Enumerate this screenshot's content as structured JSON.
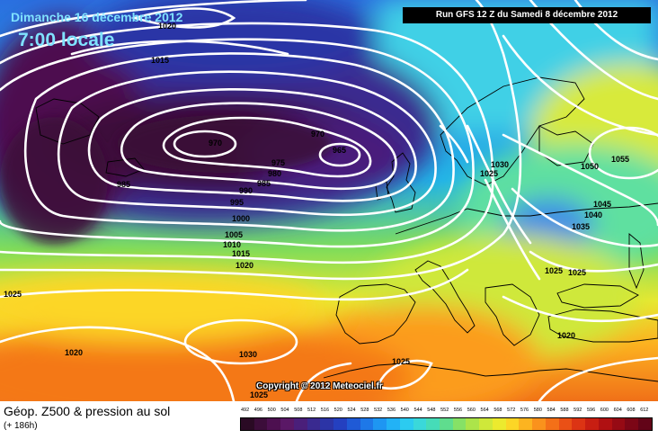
{
  "header": {
    "date": "Dimanche 16 décembre 2012",
    "time": "7:00 locale",
    "run": "Run GFS 12 Z du Samedi 8 décembre 2012"
  },
  "copyright": "Copyright © 2012 Meteociel.fr",
  "footer": {
    "title": "Géop. Z500 & pression au sol",
    "lead": "(+ 186h)"
  },
  "map": {
    "isobar_color": "#ffffff",
    "coast_color": "#000000",
    "pressure_labels": [
      {
        "text": "1020"
      },
      {
        "text": "1015"
      },
      {
        "text": "970"
      },
      {
        "text": "970"
      },
      {
        "text": "965"
      },
      {
        "text": "975"
      },
      {
        "text": "980"
      },
      {
        "text": "985"
      },
      {
        "text": "985"
      },
      {
        "text": "990"
      },
      {
        "text": "995"
      },
      {
        "text": "1000"
      },
      {
        "text": "1005"
      },
      {
        "text": "1010"
      },
      {
        "text": "1015"
      },
      {
        "text": "1020"
      },
      {
        "text": "1025"
      },
      {
        "text": "1020"
      },
      {
        "text": "1030"
      },
      {
        "text": "1025"
      },
      {
        "text": "1025"
      },
      {
        "text": "1030"
      },
      {
        "text": "1025"
      },
      {
        "text": "1050"
      },
      {
        "text": "1055"
      },
      {
        "text": "1045"
      },
      {
        "text": "1040"
      },
      {
        "text": "1035"
      },
      {
        "text": "1025"
      },
      {
        "text": "1025"
      },
      {
        "text": "1020"
      }
    ]
  },
  "scale": {
    "labels": [
      "492",
      "496",
      "500",
      "504",
      "508",
      "512",
      "516",
      "520",
      "524",
      "528",
      "532",
      "536",
      "540",
      "544",
      "548",
      "552",
      "556",
      "560",
      "564",
      "568",
      "572",
      "576",
      "580",
      "584",
      "588",
      "592",
      "596",
      "600",
      "604",
      "608",
      "612"
    ],
    "colors": [
      "#2a0a24",
      "#3c0d3a",
      "#4d1050",
      "#5a1866",
      "#4a1f7a",
      "#3a2a90",
      "#2c34a6",
      "#2440c0",
      "#1f5ad6",
      "#1e78e8",
      "#1e96f2",
      "#22b2f6",
      "#2ccbf0",
      "#3ad8da",
      "#46dcb8",
      "#5fdd8e",
      "#86e166",
      "#ace44a",
      "#cfe83a",
      "#ecea2e",
      "#fcd626",
      "#fcb420",
      "#fa921c",
      "#f47018",
      "#ea5016",
      "#dc3414",
      "#c81e12",
      "#b01012",
      "#960a14",
      "#7c0616",
      "#620418"
    ]
  }
}
